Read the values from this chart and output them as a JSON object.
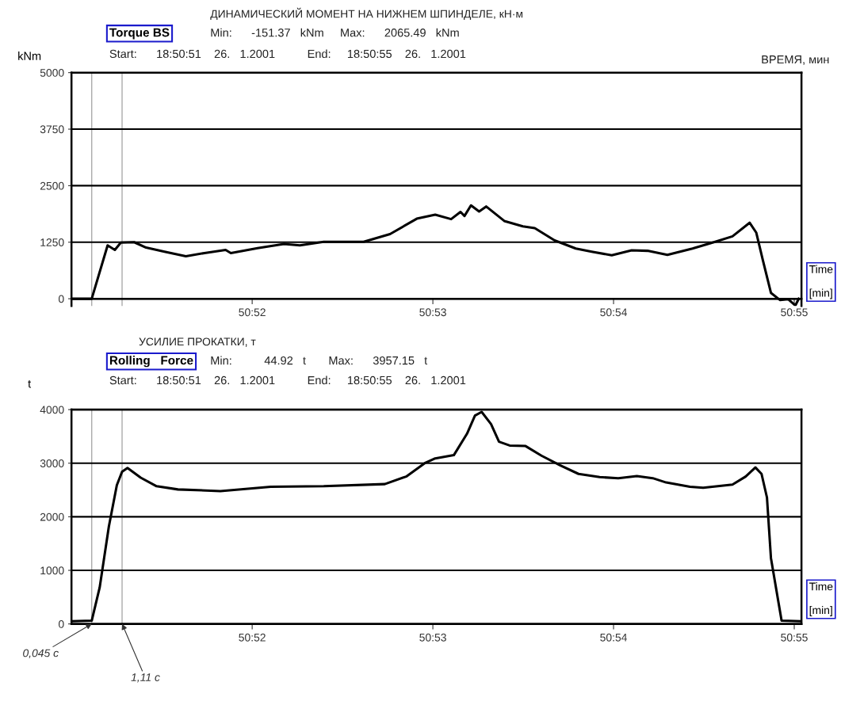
{
  "chart_data": [
    {
      "type": "line",
      "title": "Torque BS",
      "subtitle": "ДИНАМИЧЕСКИЙ МОМЕНТ НА НИЖНЕМ ШПИНДЕЛЕ, кН·м",
      "xlabel": "Time\n\n[min]",
      "ylabel": "kNm",
      "x": [
        "2001-01-26T18:50:51.000",
        "2001-01-26T18:50:51.112",
        "2001-01-26T18:50:51.200",
        "2001-01-26T18:50:51.240",
        "2001-01-26T18:50:51.273",
        "2001-01-26T18:50:51.347",
        "2001-01-26T18:50:51.413",
        "2001-01-26T18:50:51.515",
        "2001-01-26T18:50:51.633",
        "2001-01-26T18:50:51.736",
        "2001-01-26T18:50:51.853",
        "2001-01-26T18:50:51.882",
        "2001-01-26T18:50:52.030",
        "2001-01-26T18:50:52.176",
        "2001-01-26T18:50:52.264",
        "2001-01-26T18:50:52.396",
        "2001-01-26T18:50:52.617",
        "2001-01-26T18:50:52.763",
        "2001-01-26T18:50:52.911",
        "2001-01-26T18:50:53.013",
        "2001-01-26T18:50:53.101",
        "2001-01-26T18:50:53.153",
        "2001-01-26T18:50:53.175",
        "2001-01-26T18:50:53.211",
        "2001-01-26T18:50:53.256",
        "2001-01-26T18:50:53.295",
        "2001-01-26T18:50:53.395",
        "2001-01-26T18:50:53.498",
        "2001-01-26T18:50:53.564",
        "2001-01-26T18:50:53.674",
        "2001-01-26T18:50:53.791",
        "2001-01-26T18:50:53.879",
        "2001-01-26T18:50:53.990",
        "2001-01-26T18:50:54.100",
        "2001-01-26T18:50:54.188",
        "2001-01-26T18:50:54.298",
        "2001-01-26T18:50:54.437",
        "2001-01-26T18:50:54.555",
        "2001-01-26T18:50:54.658",
        "2001-01-26T18:50:54.753",
        "2001-01-26T18:50:54.790",
        "2001-01-26T18:50:54.827",
        "2001-01-26T18:50:54.871",
        "2001-01-26T18:50:54.922",
        "2001-01-26T18:50:54.966",
        "2001-01-26T18:50:55.006",
        "2001-01-26T18:50:55.025"
      ],
      "series": [
        {
          "color": "#000000",
          "values": [
            0,
            0,
            1180,
            1080,
            1240,
            1250,
            1130,
            1040,
            940,
            1010,
            1080,
            1010,
            1120,
            1210,
            1180,
            1260,
            1260,
            1430,
            1770,
            1860,
            1760,
            1920,
            1830,
            2065,
            1930,
            2040,
            1720,
            1600,
            1560,
            1290,
            1110,
            1040,
            960,
            1070,
            1060,
            970,
            1110,
            1250,
            1380,
            1680,
            1460,
            840,
            130,
            -30,
            -10,
            -150,
            0
          ]
        }
      ],
      "xlim": [
        "2001-01-26T18:50:51.000",
        "2001-01-26T18:50:55.040"
      ],
      "xticks": [
        {
          "value": "2001-01-26T18:50:52",
          "label": "50:52"
        },
        {
          "value": "2001-01-26T18:50:53",
          "label": "50:53"
        },
        {
          "value": "2001-01-26T18:50:54",
          "label": "50:54"
        },
        {
          "value": "2001-01-26T18:50:55",
          "label": "50:55"
        }
      ],
      "ylim": [
        -160,
        5000
      ],
      "yticks": [
        0,
        1250,
        2500,
        3750,
        5000
      ],
      "grid": "y",
      "ref_lines": [
        {
          "axis": "x",
          "value": "2001-01-26T18:50:51.112",
          "color": "#aaaaaa"
        },
        {
          "axis": "x",
          "value": "2001-01-26T18:50:51.280",
          "color": "#aaaaaa"
        }
      ],
      "annotations": [
        "Min:      -151.37   kNm     Max:      2065.49   kNm",
        "Start:      18:50:51    26.   1.2001          End:     18:50:55    26.   1.2001",
        "ВРЕМЯ, мин"
      ]
    },
    {
      "type": "line",
      "title": "Rolling   Force",
      "subtitle": "УСИЛИЕ ПРОКАТКИ, т",
      "xlabel": "Time\n\n[min]",
      "ylabel": "t",
      "x": [
        "2001-01-26T18:50:51.000",
        "2001-01-26T18:50:51.112",
        "2001-01-26T18:50:51.156",
        "2001-01-26T18:50:51.207",
        "2001-01-26T18:50:51.251",
        "2001-01-26T18:50:51.280",
        "2001-01-26T18:50:51.310",
        "2001-01-26T18:50:51.383",
        "2001-01-26T18:50:51.471",
        "2001-01-26T18:50:51.589",
        "2001-01-26T18:50:51.824",
        "2001-01-26T18:50:52.103",
        "2001-01-26T18:50:52.396",
        "2001-01-26T18:50:52.734",
        "2001-01-26T18:50:52.852",
        "2001-01-26T18:50:52.955",
        "2001-01-26T18:50:53.013",
        "2001-01-26T18:50:53.116",
        "2001-01-26T18:50:53.189",
        "2001-01-26T18:50:53.233",
        "2001-01-26T18:50:53.270",
        "2001-01-26T18:50:53.322",
        "2001-01-26T18:50:53.366",
        "2001-01-26T18:50:53.425",
        "2001-01-26T18:50:53.513",
        "2001-01-26T18:50:53.601",
        "2001-01-26T18:50:53.704",
        "2001-01-26T18:50:53.806",
        "2001-01-26T18:50:53.923",
        "2001-01-26T18:50:54.026",
        "2001-01-26T18:50:54.129",
        "2001-01-26T18:50:54.217",
        "2001-01-26T18:50:54.291",
        "2001-01-26T18:50:54.423",
        "2001-01-26T18:50:54.496",
        "2001-01-26T18:50:54.658",
        "2001-01-26T18:50:54.731",
        "2001-01-26T18:50:54.785",
        "2001-01-26T18:50:54.819",
        "2001-01-26T18:50:54.849",
        "2001-01-26T18:50:54.871",
        "2001-01-26T18:50:54.930",
        "2001-01-26T18:50:55.030"
      ],
      "series": [
        {
          "color": "#000000",
          "values": [
            50,
            60,
            680,
            1820,
            2590,
            2840,
            2910,
            2730,
            2570,
            2510,
            2480,
            2560,
            2570,
            2610,
            2750,
            3000,
            3090,
            3150,
            3550,
            3890,
            3957,
            3730,
            3400,
            3330,
            3320,
            3140,
            2960,
            2800,
            2740,
            2720,
            2760,
            2720,
            2640,
            2560,
            2540,
            2600,
            2750,
            2920,
            2800,
            2360,
            1230,
            60,
            50
          ]
        }
      ],
      "xlim": [
        "2001-01-26T18:50:51.000",
        "2001-01-26T18:50:55.040"
      ],
      "xticks": [
        {
          "value": "2001-01-26T18:50:52",
          "label": "50:52"
        },
        {
          "value": "2001-01-26T18:50:53",
          "label": "50:53"
        },
        {
          "value": "2001-01-26T18:50:54",
          "label": "50:54"
        },
        {
          "value": "2001-01-26T18:50:55",
          "label": "50:55"
        }
      ],
      "ylim": [
        0,
        4000
      ],
      "yticks": [
        0,
        1000,
        2000,
        3000,
        4000
      ],
      "grid": "y",
      "ref_lines": [
        {
          "axis": "x",
          "value": "2001-01-26T18:50:51.112",
          "label": "0,045 с",
          "color": "#aaaaaa"
        },
        {
          "axis": "x",
          "value": "2001-01-26T18:50:51.280",
          "label": "1,11 с",
          "color": "#aaaaaa"
        }
      ],
      "annotations": [
        "Min:          44.92   t       Max:      3957.15   t",
        "Start:      18:50:51    26.   1.2001          End:     18:50:55    26.   1.2001"
      ]
    }
  ]
}
